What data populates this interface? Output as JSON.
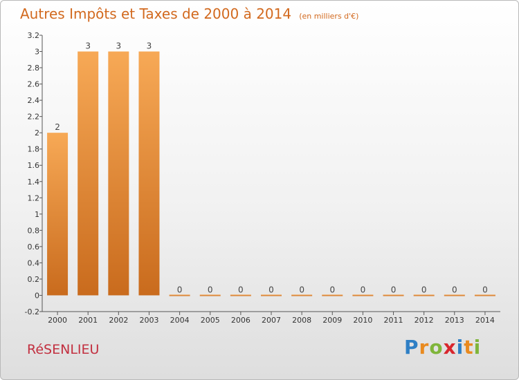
{
  "header": {
    "title": "Autres Impôts et Taxes de 2000 à 2014",
    "unit": "(en milliers d'€)"
  },
  "footer": {
    "commune": "RéSENLIEU",
    "logo_letters": [
      "P",
      "r",
      "o",
      "x",
      "i",
      "t",
      "i"
    ],
    "logo_colors": [
      "#2e7fc5",
      "#e98a1f",
      "#7fb53a",
      "#d8262d",
      "#2e7fc5",
      "#e98a1f",
      "#7fb53a"
    ]
  },
  "chart_data": {
    "type": "bar",
    "categories": [
      "2000",
      "2001",
      "2002",
      "2003",
      "2004",
      "2005",
      "2006",
      "2007",
      "2008",
      "2009",
      "2010",
      "2011",
      "2012",
      "2013",
      "2014"
    ],
    "values": [
      2,
      3,
      3,
      3,
      0,
      0,
      0,
      0,
      0,
      0,
      0,
      0,
      0,
      0,
      0
    ],
    "data_labels": [
      "2",
      "3",
      "3",
      "3",
      "0",
      "0",
      "0",
      "0",
      "0",
      "0",
      "0",
      "0",
      "0",
      "0",
      "0"
    ],
    "ylim": [
      -0.2,
      3.2
    ],
    "yticks": [
      -0.2,
      0,
      0.2,
      0.4,
      0.6,
      0.8,
      1,
      1.2,
      1.4,
      1.6,
      1.8,
      2,
      2.2,
      2.4,
      2.6,
      2.8,
      3,
      3.2
    ],
    "ytick_labels": [
      "-0.2",
      "0",
      "0.2",
      "0.4",
      "0.6",
      "0.8",
      "1",
      "1.2",
      "1.4",
      "1.6",
      "1.8",
      "2",
      "2.2",
      "2.4",
      "2.6",
      "2.8",
      "3",
      "3.2"
    ],
    "grid": false,
    "bar_color": "#e8913b",
    "bar_color_light": "#f7a956",
    "bar_color_dark": "#c96b1d",
    "xlabel": "",
    "ylabel": ""
  }
}
